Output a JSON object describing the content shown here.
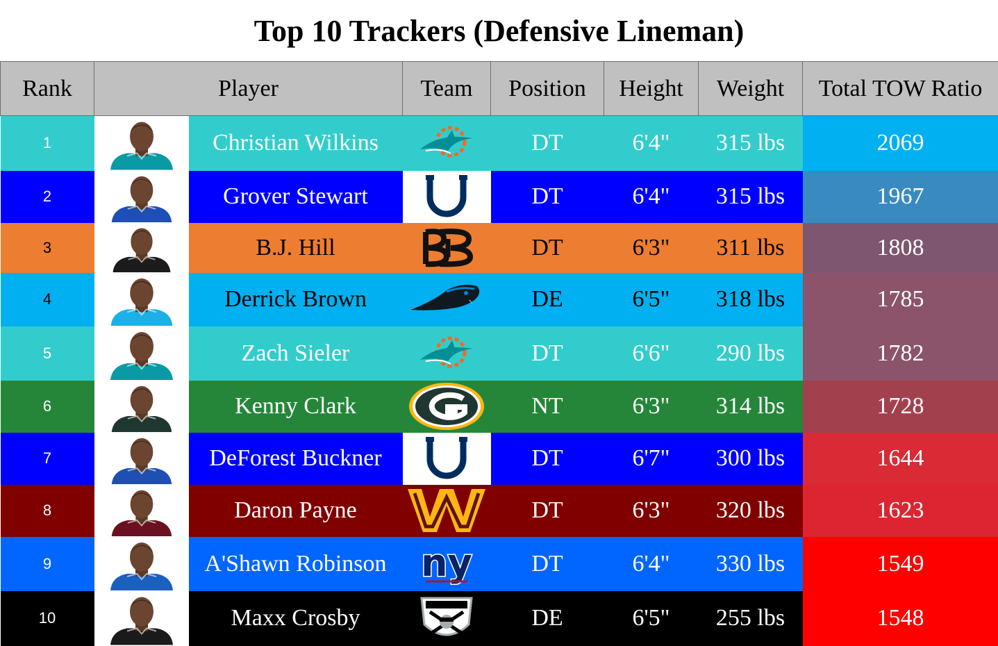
{
  "title": "Top 10 Trackers (Defensive Lineman)",
  "headers": {
    "rank": "Rank",
    "player": "Player",
    "team": "Team",
    "position": "Position",
    "height": "Height",
    "weight": "Weight",
    "ratio": "Total TOW Ratio"
  },
  "chart_data": {
    "type": "table",
    "title": "Top 10 Trackers (Defensive Lineman)",
    "columns": [
      "Rank",
      "Player",
      "Team",
      "Position",
      "Height",
      "Weight",
      "Total TOW Ratio"
    ],
    "rows": [
      {
        "rank": "1",
        "player": "Christian Wilkins",
        "team_logo": "dolphins-logo",
        "position": "DT",
        "height": "6'4\"",
        "weight": "315 lbs",
        "ratio": "2069",
        "row_color": "#33cccc",
        "ratio_color": "#00b0f0",
        "rank_text_color": "#ffffff",
        "text_color": "#ffffff",
        "jersey_color": "#0a9aa5",
        "logo_bg": "#33cccc"
      },
      {
        "rank": "2",
        "player": "Grover Stewart",
        "team_logo": "colts-logo",
        "position": "DT",
        "height": "6'4\"",
        "weight": "315 lbs",
        "ratio": "1967",
        "row_color": "#0000ff",
        "ratio_color": "#3a8ac2",
        "rank_text_color": "#ffffff",
        "text_color": "#ffffff",
        "jersey_color": "#1f4fb3",
        "logo_bg": "#ffffff"
      },
      {
        "rank": "3",
        "player": "B.J. Hill",
        "team_logo": "bengals-logo",
        "position": "DT",
        "height": "6'3\"",
        "weight": "311 lbs",
        "ratio": "1808",
        "row_color": "#ed7d31",
        "ratio_color": "#7e5670",
        "rank_text_color": "#000000",
        "text_color": "#000000",
        "jersey_color": "#1c1c1c",
        "logo_bg": "#ed7d31"
      },
      {
        "rank": "4",
        "player": "Derrick Brown",
        "team_logo": "panthers-logo",
        "position": "DE",
        "height": "6'5\"",
        "weight": "318 lbs",
        "ratio": "1785",
        "row_color": "#00b0f0",
        "ratio_color": "#8b546a",
        "rank_text_color": "#000000",
        "text_color": "#000000",
        "jersey_color": "#1bb0e6",
        "logo_bg": "#00b0f0"
      },
      {
        "rank": "5",
        "player": "Zach Sieler",
        "team_logo": "dolphins-logo",
        "position": "DT",
        "height": "6'6\"",
        "weight": "290 lbs",
        "ratio": "1782",
        "row_color": "#33cccc",
        "ratio_color": "#8b546a",
        "rank_text_color": "#ffffff",
        "text_color": "#ffffff",
        "jersey_color": "#0a9aa5",
        "logo_bg": "#33cccc"
      },
      {
        "rank": "6",
        "player": "Kenny Clark",
        "team_logo": "packers-logo",
        "position": "NT",
        "height": "6'3\"",
        "weight": "314 lbs",
        "ratio": "1728",
        "row_color": "#25863a",
        "ratio_color": "#a3404e",
        "rank_text_color": "#ffffff",
        "text_color": "#ffffff",
        "jersey_color": "#203731",
        "logo_bg": "#25863a"
      },
      {
        "rank": "7",
        "player": "DeForest Buckner",
        "team_logo": "colts-logo",
        "position": "DT",
        "height": "6'7\"",
        "weight": "300 lbs",
        "ratio": "1644",
        "row_color": "#0000ff",
        "ratio_color": "#d92a35",
        "rank_text_color": "#ffffff",
        "text_color": "#ffffff",
        "jersey_color": "#1f4fb3",
        "logo_bg": "#ffffff"
      },
      {
        "rank": "8",
        "player": "Daron Payne",
        "team_logo": "commanders-logo",
        "position": "DT",
        "height": "6'3\"",
        "weight": "320 lbs",
        "ratio": "1623",
        "row_color": "#800000",
        "ratio_color": "#dc2530",
        "rank_text_color": "#ffffff",
        "text_color": "#ffffff",
        "jersey_color": "#6b1020",
        "logo_bg": "#800000"
      },
      {
        "rank": "9",
        "player": "A'Shawn Robinson",
        "team_logo": "giants-logo",
        "position": "DT",
        "height": "6'4\"",
        "weight": "330 lbs",
        "ratio": "1549",
        "row_color": "#0066ff",
        "ratio_color": "#ff0000",
        "rank_text_color": "#ffffff",
        "text_color": "#ffffff",
        "jersey_color": "#1b5fbf",
        "logo_bg": "#0066ff"
      },
      {
        "rank": "10",
        "player": "Maxx Crosby",
        "team_logo": "raiders-logo",
        "position": "DE",
        "height": "6'5\"",
        "weight": "255 lbs",
        "ratio": "1548",
        "row_color": "#000000",
        "ratio_color": "#ff0000",
        "rank_text_color": "#ffffff",
        "text_color": "#ffffff",
        "jersey_color": "#1a1a1a",
        "logo_bg": "#000000"
      }
    ]
  }
}
